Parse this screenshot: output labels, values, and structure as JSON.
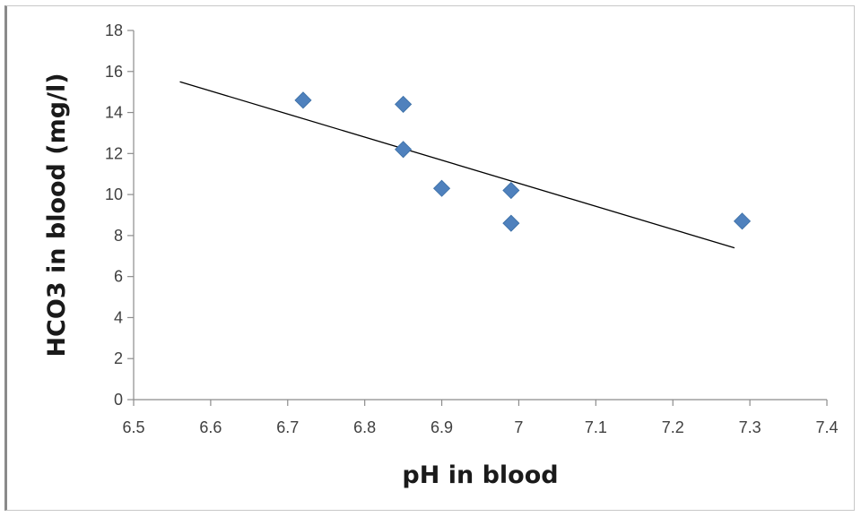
{
  "chart_data": {
    "type": "scatter",
    "title": "",
    "xlabel": "pH in blood",
    "ylabel": "HCO3 in blood (mg/l)",
    "xlim": [
      6.5,
      7.4
    ],
    "ylim": [
      0,
      18
    ],
    "xticks": [
      6.5,
      6.6,
      6.7,
      6.8,
      6.9,
      7,
      7.1,
      7.2,
      7.3,
      7.4
    ],
    "xtick_labels": [
      "6.5",
      "6.6",
      "6.7",
      "6.8",
      "6.9",
      "7",
      "7.1",
      "7.2",
      "7.3",
      "7.4"
    ],
    "yticks": [
      0,
      2,
      4,
      6,
      8,
      10,
      12,
      14,
      16,
      18
    ],
    "ytick_labels": [
      "0",
      "2",
      "4",
      "6",
      "8",
      "10",
      "12",
      "14",
      "16",
      "18"
    ],
    "grid": false,
    "legend": "none",
    "series": [
      {
        "marker": "diamond",
        "color": "#4f81bd",
        "points": [
          {
            "x": 6.72,
            "y": 14.6
          },
          {
            "x": 6.85,
            "y": 14.4
          },
          {
            "x": 6.85,
            "y": 12.2
          },
          {
            "x": 6.9,
            "y": 10.3
          },
          {
            "x": 6.99,
            "y": 10.2
          },
          {
            "x": 6.99,
            "y": 8.6
          },
          {
            "x": 7.29,
            "y": 8.7
          }
        ]
      }
    ],
    "trendline": {
      "type": "linear",
      "color": "#000000",
      "start": {
        "x": 6.56,
        "y": 15.5
      },
      "end": {
        "x": 7.28,
        "y": 7.4
      }
    }
  }
}
